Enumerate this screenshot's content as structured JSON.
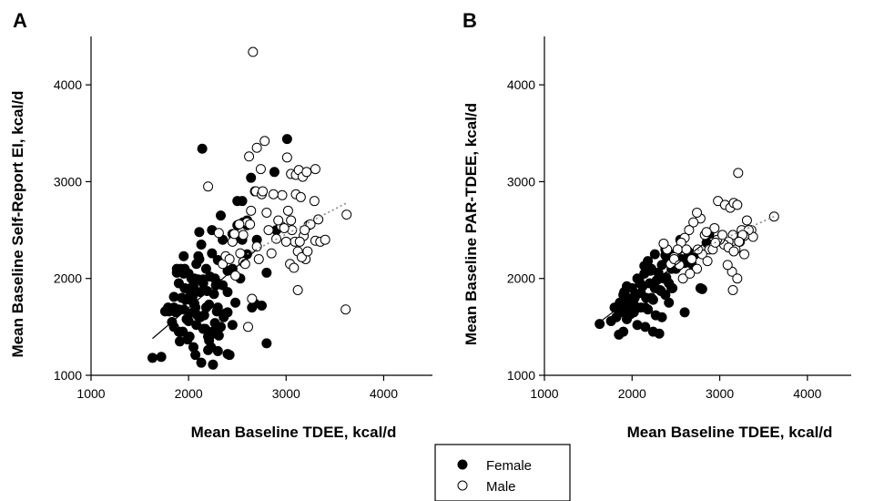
{
  "legend": {
    "female_label": "Female",
    "male_label": "Male",
    "female_color": "#000000",
    "male_color": "#ffffff"
  },
  "chart_data": [
    {
      "panel": "A",
      "type": "scatter",
      "title": "",
      "xlabel": "Mean Baseline TDEE, kcal/d",
      "ylabel": "Mean Baseline Self-Report EI, kcal/d",
      "xlim": [
        1000,
        4500
      ],
      "ylim": [
        1000,
        4500
      ],
      "xticks": [
        "1000",
        "2000",
        "3000",
        "4000"
      ],
      "yticks": [
        "1000",
        "2000",
        "3000",
        "4000"
      ],
      "grid": false,
      "series": [
        {
          "name": "Female",
          "color": "#000000",
          "fill": "filled",
          "x": [
            1630,
            1720,
            1760,
            1790,
            1800,
            1830,
            1850,
            1870,
            1880,
            1900,
            1910,
            1920,
            1930,
            1940,
            1950,
            1960,
            1970,
            1980,
            1990,
            2000,
            2010,
            2020,
            2030,
            2040,
            2050,
            2060,
            2070,
            2080,
            2090,
            2100,
            2110,
            2120,
            2130,
            2140,
            2150,
            2160,
            2170,
            2180,
            2190,
            2200,
            2210,
            2220,
            2230,
            2240,
            2250,
            2260,
            2270,
            2280,
            2290,
            2300,
            2310,
            2330,
            2350,
            2380,
            2400,
            2420,
            2450,
            2480,
            2500,
            2530,
            2560,
            2600,
            2640,
            2680,
            2750,
            2800,
            1850,
            1880,
            1900,
            1950,
            2000,
            2050,
            2080,
            2120,
            2150,
            2180,
            2210,
            2240,
            2270,
            2300,
            2330,
            2360,
            2400,
            2450,
            2500,
            2550,
            2600,
            2650,
            1960,
            2020,
            2070,
            2110,
            2150,
            2200,
            2250,
            2300,
            2350,
            2400,
            2450,
            2500,
            2550,
            2600,
            2700,
            2800,
            2900,
            3010,
            2880,
            2130,
            2250,
            2300,
            2400,
            2200,
            2100,
            2000,
            2050,
            1950,
            1900,
            1850,
            2010,
            2060
          ],
          "y": [
            1180,
            1190,
            1660,
            1700,
            1660,
            1550,
            1500,
            1650,
            2060,
            1950,
            1350,
            2100,
            1800,
            1450,
            1680,
            1900,
            1780,
            1580,
            1370,
            2050,
            1640,
            1900,
            2000,
            1810,
            1290,
            1740,
            1210,
            1520,
            1620,
            1990,
            2480,
            1860,
            2350,
            3340,
            1990,
            1620,
            1480,
            2100,
            1870,
            1260,
            1730,
            2020,
            1290,
            2260,
            1110,
            1840,
            1540,
            1930,
            1660,
            2190,
            1410,
            2650,
            1930,
            1640,
            2080,
            1210,
            1520,
            1750,
            2800,
            2000,
            2580,
            2600,
            3040,
            1740,
            1720,
            2060,
            1810,
            2100,
            1680,
            2050,
            1800,
            1920,
            2150,
            1600,
            1480,
            1700,
            1360,
            2500,
            2000,
            1950,
            1500,
            1600,
            1860,
            2100,
            2420,
            2800,
            2250,
            1700,
            2100,
            1850,
            1700,
            2200,
            1950,
            1450,
            1450,
            1700,
            2400,
            1650,
            2460,
            2550,
            2400,
            2550,
            2400,
            1330,
            2500,
            3440,
            3100,
            1130,
            1430,
            1250,
            1220,
            1400,
            2230,
            1560,
            1750,
            2230,
            1450,
            1700,
            1400,
            2000
          ],
          "trend": {
            "x": [
              1630,
              2700
            ],
            "y": [
              1380,
              2300
            ],
            "style": "solid"
          }
        },
        {
          "name": "Male",
          "color": "#ffffff",
          "fill": "open",
          "x": [
            2660,
            2700,
            2780,
            2620,
            2740,
            2680,
            2960,
            3010,
            3050,
            3100,
            3130,
            3170,
            3210,
            3300,
            3020,
            3060,
            3090,
            3120,
            3180,
            3230,
            3290,
            3330,
            2200,
            2310,
            2450,
            2530,
            2560,
            2600,
            2630,
            2690,
            2750,
            2800,
            2850,
            2900,
            2950,
            3000,
            3050,
            3100,
            3150,
            3200,
            3250,
            3300,
            3350,
            3400,
            3620,
            3610,
            2480,
            2520,
            2560,
            2610,
            2650,
            2700,
            2760,
            2820,
            2870,
            2920,
            2980,
            3040,
            3080,
            3120,
            3140,
            3160,
            3190,
            3220,
            2350,
            2380,
            2420,
            2470,
            2580,
            2640,
            2720
          ],
          "y": [
            4340,
            3350,
            3420,
            3260,
            3130,
            2900,
            2860,
            3250,
            3080,
            3070,
            3120,
            3050,
            3100,
            3130,
            2700,
            2500,
            2380,
            2280,
            2440,
            2550,
            2800,
            2610,
            2950,
            2470,
            2380,
            2260,
            2450,
            2580,
            2560,
            2900,
            2870,
            2680,
            2260,
            2410,
            2540,
            2380,
            2600,
            2870,
            2840,
            2200,
            2560,
            2390,
            2380,
            2400,
            2660,
            1680,
            2030,
            2560,
            2170,
            1500,
            1790,
            2330,
            2900,
            2500,
            2870,
            2600,
            2520,
            2150,
            2110,
            1880,
            2380,
            2220,
            2500,
            2280,
            2150,
            2230,
            2200,
            2460,
            2150,
            2700,
            2200
          ],
          "trend": {
            "x": [
              2600,
              3620
            ],
            "y": [
              2250,
              2780
            ],
            "style": "dotted"
          }
        }
      ]
    },
    {
      "panel": "B",
      "type": "scatter",
      "title": "",
      "xlabel": "Mean Baseline TDEE, kcal/d",
      "ylabel": "Mean Baseline PAR-TDEE, kcal/d",
      "xlim": [
        1000,
        4500
      ],
      "ylim": [
        1000,
        4500
      ],
      "xticks": [
        "1000",
        "2000",
        "3000",
        "4000"
      ],
      "yticks": [
        "1000",
        "2000",
        "3000",
        "4000"
      ],
      "grid": false,
      "series": [
        {
          "name": "Female",
          "color": "#000000",
          "fill": "filled",
          "x": [
            1630,
            1760,
            1800,
            1820,
            1850,
            1870,
            1880,
            1900,
            1920,
            1940,
            1950,
            1960,
            1980,
            2000,
            2020,
            2040,
            2060,
            2080,
            2100,
            2120,
            2140,
            2160,
            2180,
            2200,
            2220,
            2240,
            2260,
            2280,
            2300,
            2320,
            2340,
            2360,
            2380,
            2400,
            2420,
            2450,
            2480,
            2500,
            2530,
            2560,
            2600,
            2640,
            2680,
            2720,
            2780,
            2850,
            2880,
            1860,
            1900,
            1940,
            1980,
            2020,
            2060,
            2100,
            2140,
            2180,
            2220,
            2260,
            2300,
            2340,
            2380,
            2420,
            2460,
            2500,
            2550,
            2600,
            1910,
            1970,
            2030,
            2090,
            2150,
            2210,
            2270,
            2330,
            2390,
            2450,
            2240,
            2310,
            2150,
            2600,
            2800,
            2380
          ],
          "y": [
            1530,
            1560,
            1700,
            1600,
            1420,
            1650,
            1720,
            1450,
            1760,
            1580,
            1800,
            1680,
            1630,
            1900,
            1730,
            1840,
            1520,
            1990,
            1700,
            1920,
            2050,
            1800,
            2180,
            1950,
            2100,
            1780,
            2250,
            1980,
            2060,
            1880,
            2140,
            2000,
            2300,
            2190,
            1950,
            2100,
            2250,
            2130,
            2300,
            2200,
            2160,
            2280,
            2150,
            2250,
            1900,
            2370,
            2460,
            1750,
            1830,
            1920,
            1700,
            1650,
            2000,
            1850,
            2130,
            1680,
            1800,
            1900,
            2000,
            1600,
            1830,
            1750,
            1900,
            2100,
            2400,
            2200,
            1860,
            1700,
            1800,
            1950,
            1700,
            2080,
            1620,
            1870,
            2010,
            1900,
            1450,
            1430,
            1500,
            1650,
            1890,
            2240
          ],
          "trend": {
            "x": [
              1630,
              2880
            ],
            "y": [
              1550,
              2400
            ],
            "style": "solid"
          }
        },
        {
          "name": "Male",
          "color": "#ffffff",
          "fill": "open",
          "x": [
            3210,
            2980,
            3060,
            3120,
            3160,
            3200,
            3250,
            3310,
            3360,
            3150,
            3100,
            3050,
            3000,
            2940,
            2880,
            2830,
            2780,
            2740,
            2700,
            2650,
            2600,
            2560,
            2520,
            2480,
            2440,
            2400,
            2360,
            3620,
            3380,
            3330,
            3280,
            3230,
            3180,
            3140,
            3090,
            3200,
            3260,
            3150,
            2620,
            2680,
            2740,
            2800,
            2860,
            2920,
            2970,
            3030,
            2480,
            2540,
            2580,
            2660,
            3100,
            3160,
            3220,
            3280,
            2750,
            2850,
            2950
          ],
          "y": [
            3090,
            2800,
            2760,
            2730,
            2780,
            2760,
            2500,
            2600,
            2500,
            2450,
            2380,
            2350,
            2400,
            2520,
            2300,
            2450,
            2620,
            2680,
            2580,
            2500,
            2420,
            2370,
            2300,
            2220,
            2150,
            2300,
            2360,
            2640,
            2430,
            2500,
            2440,
            2380,
            2300,
            2070,
            2140,
            2000,
            2450,
            1880,
            2300,
            2200,
            2100,
            2250,
            2180,
            2300,
            2400,
            2450,
            2200,
            2140,
            2000,
            2050,
            2320,
            2280,
            2380,
            2250,
            2300,
            2480,
            2370
          ],
          "trend": {
            "x": [
              2700,
              3620
            ],
            "y": [
              2270,
              2640
            ],
            "style": "dotted"
          }
        }
      ]
    }
  ]
}
